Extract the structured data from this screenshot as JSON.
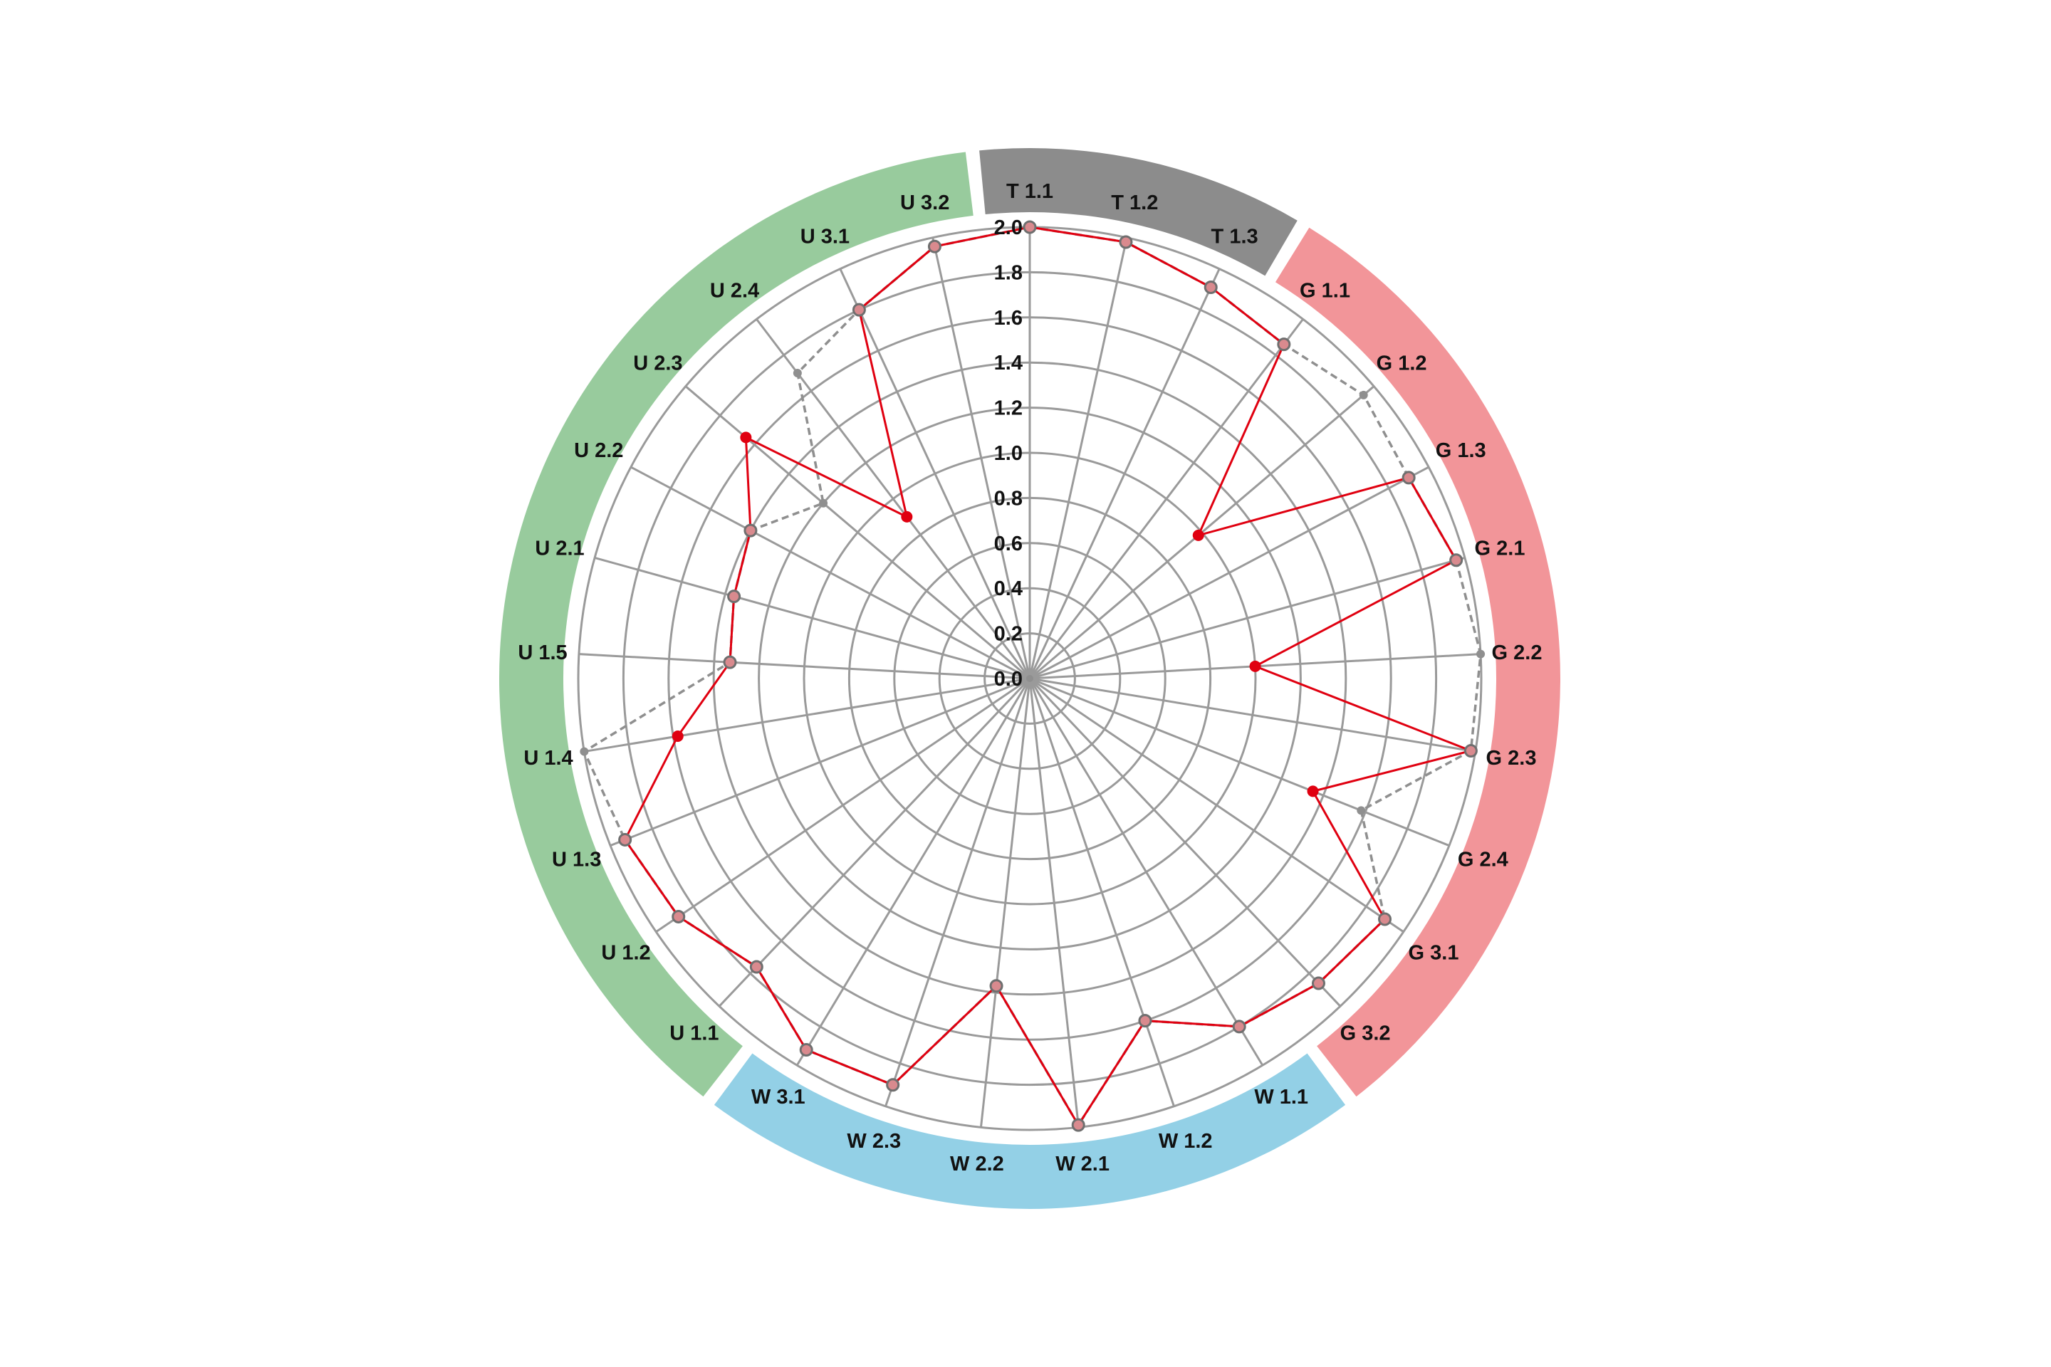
{
  "chart_data": {
    "type": "radar",
    "categories": [
      "T 1.1",
      "T 1.2",
      "T 1.3",
      "G 1.1",
      "G 1.2",
      "G 1.3",
      "G 2.1",
      "G 2.2",
      "G 2.3",
      "G 2.4",
      "G 3.1",
      "G 3.2",
      "W 1.1",
      "W 1.2",
      "W 2.1",
      "W 2.2",
      "W 2.3",
      "W 3.1",
      "U 1.1",
      "U 1.2",
      "U 1.3",
      "U 1.4",
      "U 1.5",
      "U 2.1",
      "U 2.2",
      "U 2.3",
      "U 2.4",
      "U 3.1",
      "U 3.2"
    ],
    "rlim": [
      0,
      2.0
    ],
    "rticks": [
      "0.0",
      "0.2",
      "0.4",
      "0.6",
      "0.8",
      "1.0",
      "1.2",
      "1.4",
      "1.6",
      "1.8",
      "2.0"
    ],
    "grid": true,
    "groups": [
      {
        "label_prefix": "T",
        "color": "#8c8c8c",
        "start": 0,
        "end": 2
      },
      {
        "label_prefix": "G",
        "color": "#f29599",
        "start": 3,
        "end": 11
      },
      {
        "label_prefix": "W",
        "color": "#93d0e6",
        "start": 12,
        "end": 17
      },
      {
        "label_prefix": "U",
        "color": "#98cb9d",
        "start": 18,
        "end": 28
      }
    ],
    "series": [
      {
        "style": "solid",
        "line_color": "#e00010",
        "values": [
          2.0,
          1.98,
          1.91,
          1.86,
          0.98,
          1.9,
          1.96,
          1.0,
          1.98,
          1.35,
          1.9,
          1.86,
          1.8,
          1.6,
          1.99,
          1.37,
          1.9,
          1.92,
          1.76,
          1.88,
          1.93,
          1.58,
          1.33,
          1.36,
          1.4,
          1.65,
          0.9,
          1.8,
          1.96
        ]
      },
      {
        "style": "dashed",
        "line_color": "#8f8f8f",
        "values": [
          2.0,
          1.98,
          1.91,
          1.86,
          1.94,
          1.9,
          1.96,
          2.0,
          1.98,
          1.58,
          1.9,
          1.86,
          1.8,
          1.6,
          1.99,
          1.37,
          1.9,
          1.92,
          1.76,
          1.88,
          1.93,
          2.0,
          1.33,
          1.36,
          1.4,
          1.2,
          1.7,
          1.8,
          1.96
        ]
      }
    ]
  }
}
